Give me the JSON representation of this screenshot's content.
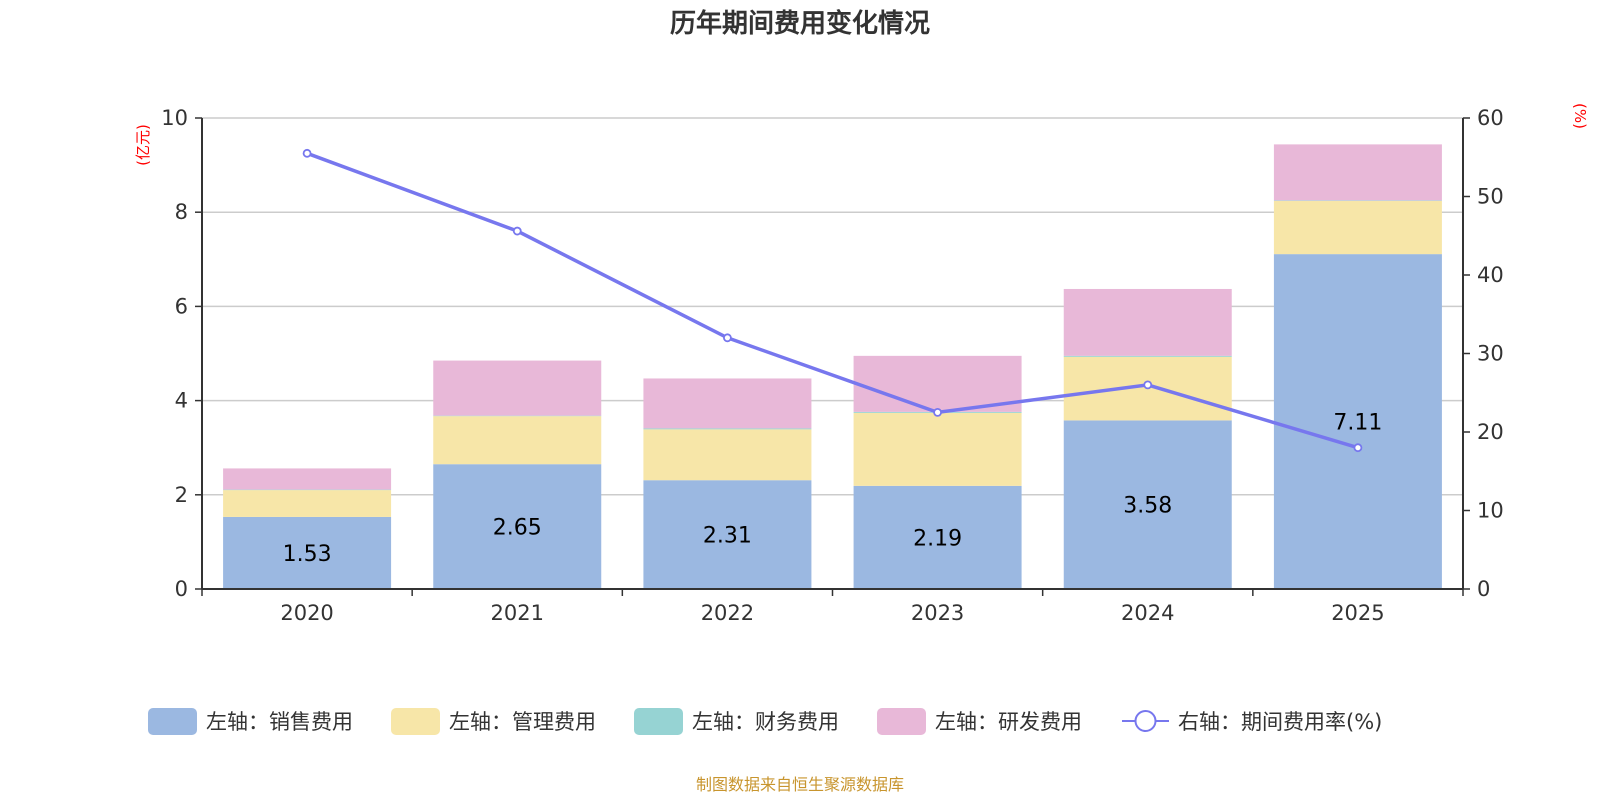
{
  "chart_data": {
    "type": "bar",
    "title": "历年期间费用变化情况",
    "categories": [
      "2020",
      "2021",
      "2022",
      "2023",
      "2024",
      "2025"
    ],
    "y_left": {
      "label": "(亿元)",
      "ylim": [
        0,
        10
      ],
      "ticks": [
        0,
        2,
        4,
        6,
        8,
        10
      ]
    },
    "y_right": {
      "label": "(%)",
      "ylim": [
        0,
        60
      ],
      "ticks": [
        0,
        10,
        20,
        30,
        40,
        50,
        60
      ]
    },
    "grid": true,
    "stacked": true,
    "legend_position": "bottom",
    "series": [
      {
        "name": "左轴：销售费用",
        "type": "bar",
        "axis": "left",
        "color": "#9bb8e1",
        "values": [
          1.53,
          2.65,
          2.31,
          2.19,
          3.58,
          7.11
        ],
        "data_labels": [
          "1.53",
          "2.65",
          "2.31",
          "2.19",
          "3.58",
          "7.11"
        ]
      },
      {
        "name": "左轴：管理费用",
        "type": "bar",
        "axis": "left",
        "color": "#f7e6a8",
        "values": [
          0.57,
          1.02,
          1.08,
          1.55,
          1.35,
          1.13
        ]
      },
      {
        "name": "左轴：财务费用",
        "type": "bar",
        "axis": "left",
        "color": "#96d3d3",
        "values": [
          0.01,
          0.01,
          0.02,
          0.02,
          0.02,
          0.01
        ]
      },
      {
        "name": "左轴：研发费用",
        "type": "bar",
        "axis": "left",
        "color": "#e8b8d8",
        "values": [
          0.45,
          1.17,
          1.06,
          1.19,
          1.42,
          1.19
        ]
      },
      {
        "name": "右轴：期间费用率(%)",
        "type": "line",
        "axis": "right",
        "color": "#7777ee",
        "values": [
          55.5,
          45.6,
          32.0,
          22.5,
          26.0,
          18.0
        ]
      }
    ],
    "source_note": "制图数据来自恒生聚源数据库"
  }
}
